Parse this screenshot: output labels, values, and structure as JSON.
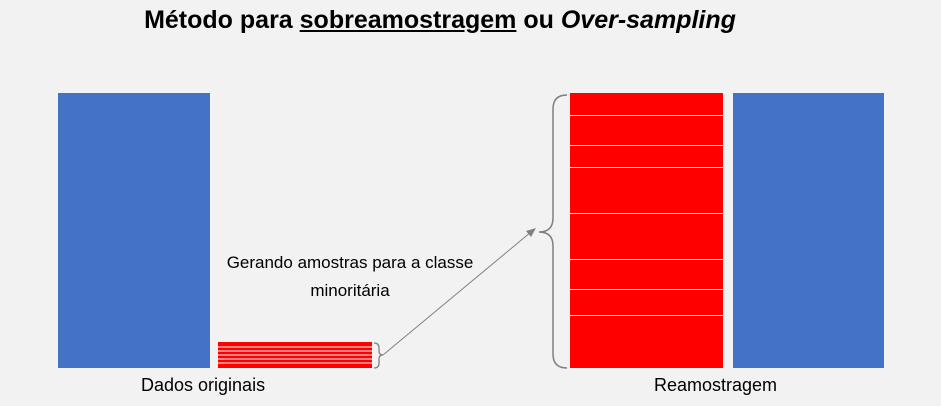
{
  "title": {
    "part1": "Método para ",
    "part2": "sobreamostragem",
    "part3": " ou ",
    "part4": "Over-sampling"
  },
  "labels": {
    "original": "Dados originais",
    "resampled": "Reamostragem",
    "generating": "Gerando  amostras para a classe minoritária"
  },
  "colors": {
    "majority": "#4472c4",
    "minority": "#ff0000",
    "background": "#f2f2f2",
    "connector": "#7f7f7f"
  }
}
